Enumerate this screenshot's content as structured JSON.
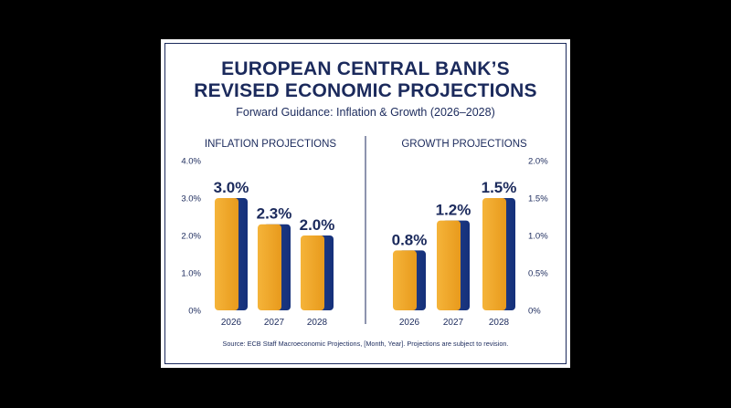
{
  "card": {
    "title_line1": "EUROPEAN CENTRAL BANK’S",
    "title_line2": "REVISED ECONOMIC PROJECTIONS",
    "subtitle": "Forward Guidance: Inflation & Growth (2026–2028)",
    "source": "Source: ECB Staff Macroeconomic Projections, [Month, Year]. Projections are subject to revision."
  },
  "colors": {
    "navy": "#1b2a5c",
    "bar_gold": "#f0a624",
    "bar_blue": "#1d3a86"
  },
  "chart_data": [
    {
      "type": "bar",
      "title": "INFLATION PROJECTIONS",
      "categories": [
        "2026",
        "2027",
        "2028"
      ],
      "values": [
        3.0,
        2.3,
        2.0
      ],
      "data_labels": [
        "3.0%",
        "2.3%",
        "2.0%"
      ],
      "ylim": [
        0,
        4
      ],
      "yticks": [
        0,
        1,
        2,
        3,
        4
      ],
      "ytick_labels": [
        "0%",
        "1.0%",
        "2.0%",
        "3.0%",
        "4.0%"
      ],
      "axis_side": "left",
      "grid": false
    },
    {
      "type": "bar",
      "title": "GROWTH PROJECTIONS",
      "categories": [
        "2026",
        "2027",
        "2028"
      ],
      "values": [
        0.8,
        1.2,
        1.5
      ],
      "data_labels": [
        "0.8%",
        "1.2%",
        "1.5%"
      ],
      "ylim": [
        0,
        2
      ],
      "yticks": [
        0,
        0.5,
        1,
        1.5,
        2
      ],
      "ytick_labels": [
        "0%",
        "0.5%",
        "1.0%",
        "1.5%",
        "2.0%"
      ],
      "axis_side": "right",
      "grid": false
    }
  ]
}
